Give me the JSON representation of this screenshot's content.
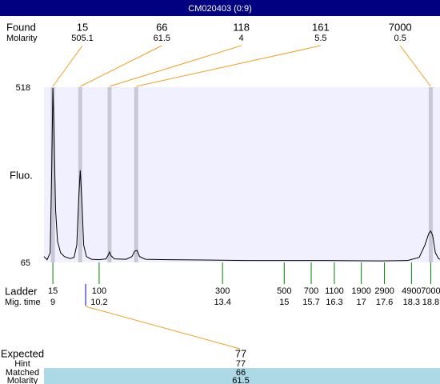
{
  "title": "CM020403 (0:9)",
  "chart_data": {
    "type": "line",
    "y_label": "Fluo.",
    "ylim": [
      65,
      518
    ],
    "yticks": [
      65,
      518
    ],
    "xlim": [
      8.77,
      19.04
    ],
    "color": "#000000",
    "x": [
      8.77,
      8.85,
      8.93,
      8.97,
      9.0,
      9.03,
      9.07,
      9.12,
      9.2,
      9.3,
      9.45,
      9.55,
      9.62,
      9.67,
      9.71,
      9.75,
      9.8,
      9.87,
      10.0,
      10.2,
      10.38,
      10.44,
      10.47,
      10.51,
      10.6,
      10.9,
      11.05,
      11.12,
      11.18,
      11.25,
      11.4,
      12,
      14,
      16,
      17.5,
      18.2,
      18.5,
      18.65,
      18.75,
      18.8,
      18.85,
      18.92,
      19.0,
      19.04
    ],
    "values": [
      80,
      72,
      90,
      300,
      516,
      400,
      200,
      120,
      90,
      80,
      75,
      78,
      110,
      230,
      303,
      230,
      110,
      80,
      73,
      72,
      74,
      85,
      92,
      82,
      74,
      73,
      80,
      94,
      96,
      80,
      73,
      72,
      70,
      70,
      69,
      70,
      78,
      110,
      140,
      146,
      135,
      90,
      75,
      73
    ],
    "found": {
      "label": "Found",
      "sublabel": "Molarity",
      "sizes": [
        15,
        66,
        118,
        161,
        7000
      ],
      "molarity": [
        505.1,
        61.5,
        4,
        5.5,
        0.5
      ],
      "mig_time": [
        9.0,
        9.71,
        10.47,
        11.16,
        18.8
      ]
    },
    "ladder": {
      "label": "Ladder",
      "sublabel": "Mig. time",
      "sizes": [
        15,
        100,
        300,
        500,
        700,
        1100,
        1900,
        2900,
        4900,
        7000
      ],
      "mig_time": [
        9,
        10.2,
        13.4,
        15,
        15.7,
        16.3,
        17,
        17.6,
        18.3,
        18.8
      ]
    },
    "expected": {
      "labels": [
        "Expected",
        "Hint",
        "Matched",
        "Molarity"
      ],
      "values": [
        77,
        77,
        66,
        61.5
      ],
      "mig_time": 9.85
    }
  }
}
